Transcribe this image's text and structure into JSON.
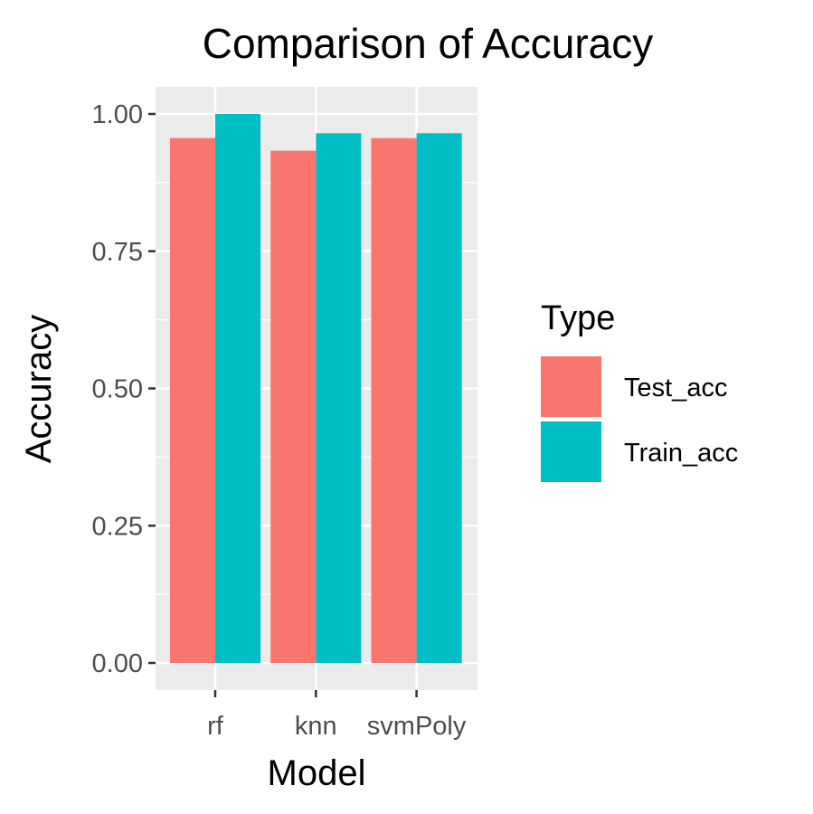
{
  "chart_data": {
    "type": "bar",
    "title": "Comparison of Accuracy",
    "xlabel": "Model",
    "ylabel": "Accuracy",
    "categories": [
      "rf",
      "knn",
      "svmPoly"
    ],
    "series": [
      {
        "name": "Test_acc",
        "values": [
          0.956,
          0.933,
          0.956
        ],
        "color": "#F8766D"
      },
      {
        "name": "Train_acc",
        "values": [
          1.0,
          0.965,
          0.965
        ],
        "color": "#00BFC4"
      }
    ],
    "ylim": [
      0,
      1
    ],
    "yticks": [
      "0.00",
      "0.25",
      "0.50",
      "0.75",
      "1.00"
    ],
    "grid": true,
    "panel_background": "#EBEBEB",
    "legend": {
      "title": "Type",
      "position": "right"
    }
  }
}
